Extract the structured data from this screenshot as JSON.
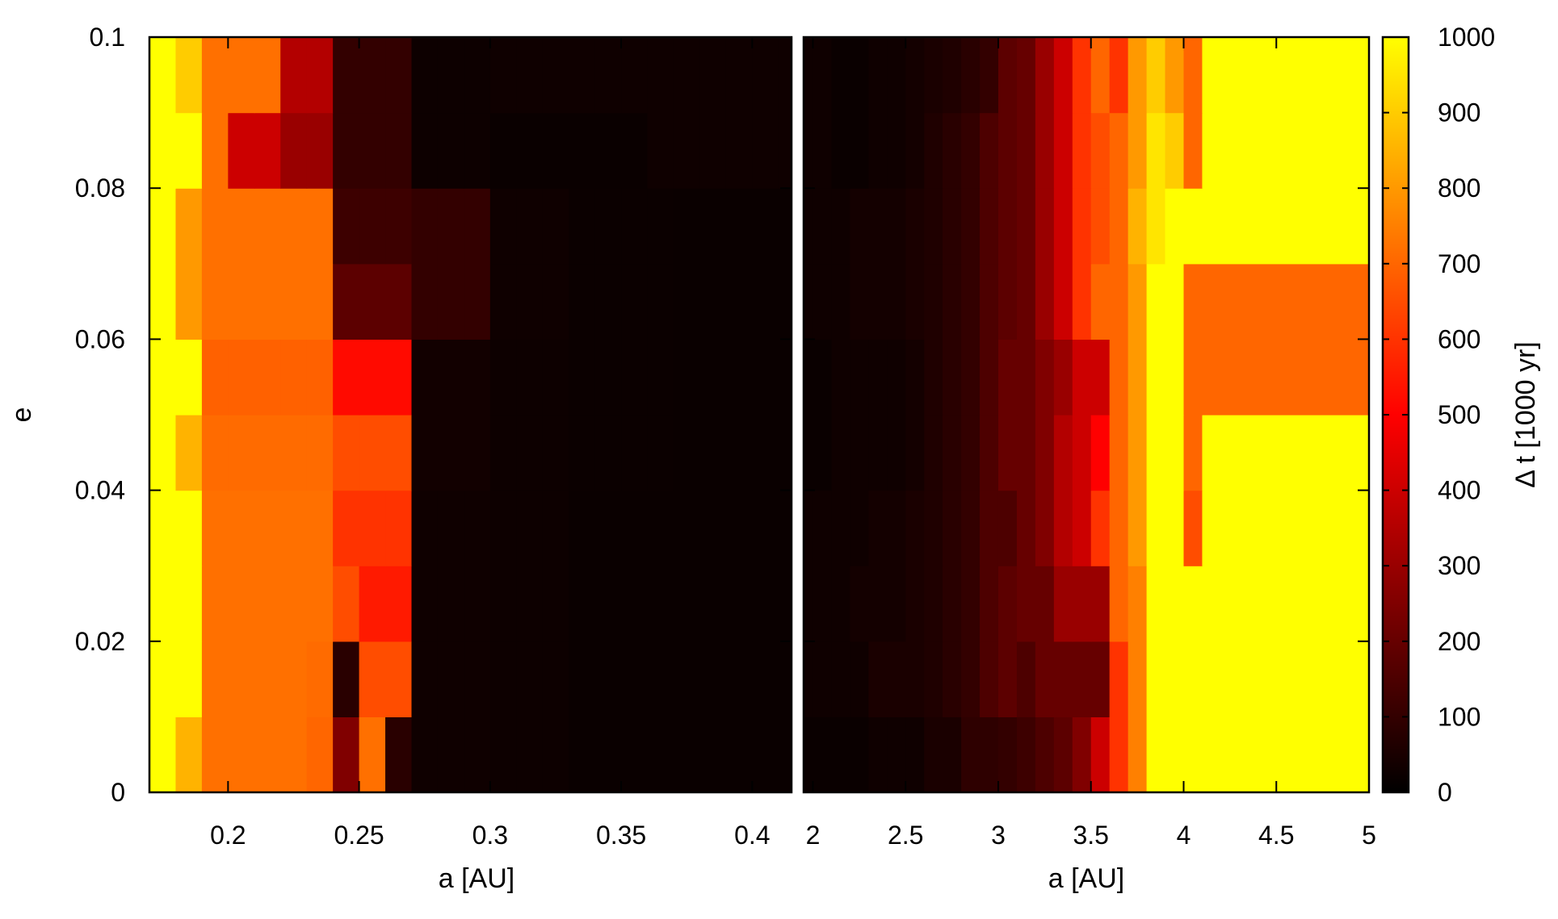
{
  "chart_data": {
    "type": "heatmap",
    "panels": [
      {
        "name": "inner",
        "xlabel": "a [AU]",
        "xlim": [
          0.17,
          0.415
        ],
        "xticks": [
          0.2,
          0.25,
          0.3,
          0.35,
          0.4
        ],
        "xticklabels": [
          "0.2",
          "0.25",
          "0.3",
          "0.35",
          "0.4"
        ],
        "x_edges": [
          0.17,
          0.18,
          0.19,
          0.2,
          0.21,
          0.22,
          0.23,
          0.24,
          0.25,
          0.26,
          0.27,
          0.28,
          0.29,
          0.3,
          0.31,
          0.32,
          0.33,
          0.34,
          0.35,
          0.36,
          0.37,
          0.38,
          0.39,
          0.4,
          0.41,
          0.415
        ],
        "values": [
          [
            1000,
            850,
            720,
            720,
            720,
            720,
            700,
            250,
            720,
            80,
            30,
            30,
            30,
            25,
            25,
            25,
            20,
            20,
            20,
            20,
            20,
            20,
            20,
            20,
            20
          ],
          [
            1000,
            1000,
            720,
            720,
            720,
            720,
            710,
            80,
            650,
            650,
            30,
            30,
            30,
            25,
            25,
            25,
            20,
            20,
            20,
            20,
            20,
            20,
            20,
            20,
            20
          ],
          [
            1000,
            1000,
            720,
            720,
            720,
            720,
            720,
            650,
            550,
            550,
            30,
            30,
            30,
            25,
            25,
            25,
            20,
            20,
            20,
            20,
            20,
            20,
            20,
            20,
            20
          ],
          [
            1000,
            1000,
            720,
            720,
            720,
            720,
            720,
            600,
            600,
            600,
            30,
            30,
            30,
            25,
            25,
            25,
            20,
            20,
            20,
            20,
            20,
            20,
            20,
            20,
            20
          ],
          [
            1000,
            850,
            710,
            710,
            710,
            710,
            710,
            650,
            650,
            650,
            35,
            35,
            35,
            25,
            25,
            25,
            22,
            22,
            22,
            22,
            20,
            20,
            20,
            20,
            20
          ],
          [
            1000,
            1000,
            690,
            690,
            690,
            690,
            690,
            520,
            520,
            520,
            35,
            35,
            35,
            25,
            25,
            25,
            22,
            22,
            22,
            22,
            20,
            20,
            20,
            20,
            20
          ],
          [
            1000,
            800,
            720,
            720,
            720,
            720,
            720,
            180,
            180,
            180,
            100,
            100,
            100,
            30,
            30,
            30,
            22,
            22,
            22,
            22,
            20,
            20,
            20,
            20,
            20
          ],
          [
            1000,
            800,
            720,
            720,
            720,
            720,
            720,
            120,
            120,
            120,
            100,
            100,
            100,
            30,
            30,
            30,
            22,
            22,
            22,
            22,
            20,
            20,
            20,
            20,
            20
          ],
          [
            1000,
            1000,
            720,
            400,
            400,
            300,
            300,
            100,
            100,
            100,
            25,
            25,
            25,
            20,
            20,
            20,
            20,
            20,
            20,
            30,
            30,
            30,
            30,
            30,
            30
          ],
          [
            1000,
            900,
            720,
            720,
            720,
            350,
            350,
            100,
            100,
            100,
            25,
            25,
            25,
            30,
            30,
            30,
            30,
            30,
            30,
            30,
            30,
            30,
            30,
            30,
            30
          ]
        ]
      },
      {
        "name": "outer",
        "xlabel": "a [AU]",
        "xlim": [
          1.95,
          5.0
        ],
        "xticks": [
          2,
          2.5,
          3,
          3.5,
          4,
          4.5,
          5
        ],
        "xticklabels": [
          "2",
          "2.5",
          "3",
          "3.5",
          "4",
          "4.5",
          "5"
        ],
        "x_edges": [
          1.95,
          2.0,
          2.1,
          2.2,
          2.3,
          2.4,
          2.5,
          2.6,
          2.7,
          2.8,
          2.9,
          3.0,
          3.1,
          3.2,
          3.3,
          3.4,
          3.5,
          3.6,
          3.7,
          3.8,
          3.9,
          4.0,
          4.1,
          5.0
        ],
        "values": [
          [
            20,
            20,
            20,
            20,
            30,
            30,
            30,
            50,
            50,
            90,
            90,
            100,
            120,
            150,
            180,
            250,
            400,
            600,
            750,
            1000,
            1000,
            1000,
            1000
          ],
          [
            30,
            30,
            30,
            30,
            50,
            50,
            50,
            60,
            80,
            100,
            150,
            180,
            150,
            200,
            200,
            200,
            200,
            600,
            750,
            1000,
            1000,
            1000,
            1000
          ],
          [
            30,
            30,
            30,
            40,
            40,
            40,
            50,
            60,
            80,
            100,
            150,
            180,
            200,
            200,
            300,
            300,
            300,
            700,
            750,
            1000,
            1000,
            1000,
            1000
          ],
          [
            30,
            30,
            30,
            30,
            40,
            40,
            50,
            60,
            80,
            100,
            150,
            150,
            200,
            250,
            350,
            400,
            600,
            700,
            800,
            1000,
            1000,
            650,
            1000
          ],
          [
            20,
            20,
            30,
            30,
            30,
            30,
            40,
            60,
            80,
            100,
            150,
            200,
            200,
            250,
            350,
            400,
            500,
            700,
            800,
            1000,
            1000,
            700,
            1000
          ],
          [
            20,
            20,
            30,
            30,
            30,
            30,
            40,
            60,
            80,
            100,
            150,
            200,
            200,
            250,
            300,
            400,
            400,
            700,
            800,
            1000,
            1000,
            700,
            700
          ],
          [
            30,
            30,
            30,
            40,
            40,
            40,
            50,
            60,
            80,
            100,
            150,
            180,
            200,
            300,
            400,
            600,
            700,
            700,
            800,
            1000,
            1000,
            700,
            700
          ],
          [
            30,
            30,
            30,
            40,
            40,
            40,
            50,
            60,
            80,
            100,
            150,
            180,
            200,
            300,
            400,
            600,
            650,
            700,
            850,
            950,
            1000,
            1000,
            1000
          ],
          [
            30,
            30,
            20,
            20,
            30,
            30,
            40,
            60,
            80,
            100,
            150,
            180,
            200,
            300,
            400,
            600,
            650,
            700,
            800,
            950,
            900,
            700,
            1000
          ],
          [
            30,
            30,
            20,
            20,
            30,
            30,
            40,
            50,
            60,
            80,
            100,
            180,
            200,
            300,
            400,
            600,
            700,
            600,
            800,
            900,
            800,
            700,
            1000
          ]
        ]
      }
    ],
    "y_edges": [
      0,
      0.01,
      0.02,
      0.03,
      0.04,
      0.05,
      0.06,
      0.07,
      0.08,
      0.09,
      0.1
    ],
    "ylabel": "e",
    "ylim": [
      0,
      0.1
    ],
    "yticks": [
      0,
      0.02,
      0.04,
      0.06,
      0.08,
      0.1
    ],
    "yticklabels": [
      "0",
      "0.02",
      "0.04",
      "0.06",
      "0.08",
      "0.1"
    ],
    "colorbar": {
      "label": "Δ t [1000 yr]",
      "range": [
        0,
        1000
      ],
      "ticks": [
        0,
        100,
        200,
        300,
        400,
        500,
        600,
        700,
        800,
        900,
        1000
      ],
      "ticklabels": [
        "0",
        "100",
        "200",
        "300",
        "400",
        "500",
        "600",
        "700",
        "800",
        "900",
        "1000"
      ],
      "colormap": [
        "#000000",
        "#ff0000",
        "#ffff00"
      ]
    },
    "legend": "none",
    "grid": false
  }
}
